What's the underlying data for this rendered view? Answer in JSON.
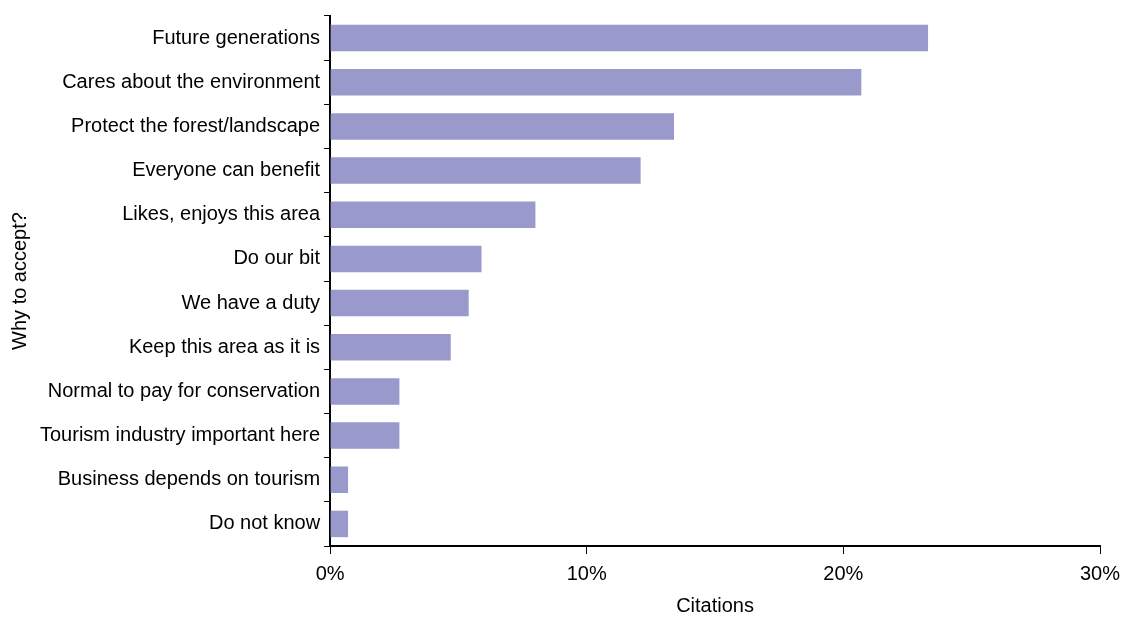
{
  "chart_data": {
    "type": "bar",
    "orientation": "horizontal",
    "xlabel": "Citations",
    "ylabel": "Why to accept?",
    "categories": [
      "Future generations",
      "Cares about the environment",
      "Protect the forest/landscape",
      "Everyone can benefit",
      "Likes, enjoys this area",
      "Do our bit",
      "We have a duty",
      "Keep this area as it is",
      "Normal to pay for conservation",
      "Tourism industry important here",
      "Business depends on tourism",
      "Do not know"
    ],
    "values": [
      23.3,
      20.7,
      13.4,
      12.1,
      8.0,
      5.9,
      5.4,
      4.7,
      2.7,
      2.7,
      0.7,
      0.7
    ],
    "color": "#9999cc",
    "xlim": [
      0,
      30
    ],
    "xticks": [
      {
        "value": 0,
        "label": "0%"
      },
      {
        "value": 10,
        "label": "10%"
      },
      {
        "value": 20,
        "label": "20%"
      },
      {
        "value": 30,
        "label": "30%"
      }
    ],
    "grid": false,
    "legend": false
  }
}
